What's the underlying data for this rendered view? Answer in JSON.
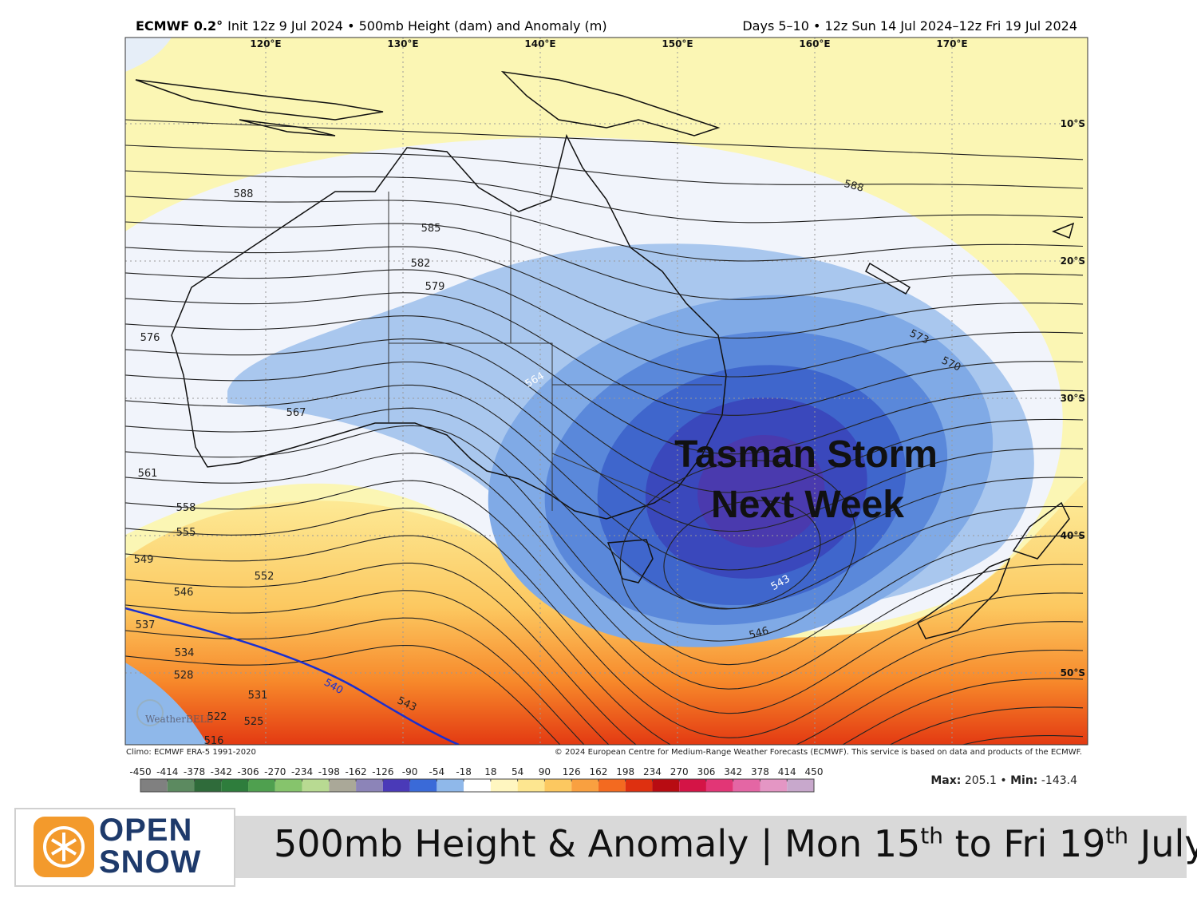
{
  "header": {
    "model": "ECMWF 0.2°",
    "run": "Init 12z 9 Jul 2024 • 500mb Height (dam) and Anomaly (m)",
    "period": "Days 5–10 • 12z Sun 14 Jul 2024–12z Fri 19 Jul 2024"
  },
  "map": {
    "lon_labels": [
      "120°E",
      "130°E",
      "140°E",
      "150°E",
      "160°E",
      "170°E"
    ],
    "lat_labels": [
      "10°S",
      "20°S",
      "30°S",
      "40°S",
      "50°S"
    ],
    "contour_labels": [
      588,
      585,
      582,
      579,
      576,
      567,
      564,
      561,
      558,
      555,
      549,
      552,
      546,
      537,
      534,
      528,
      540,
      531,
      543,
      525,
      522,
      516,
      573,
      570,
      588,
      543,
      546
    ],
    "annotation": [
      "Tasman Storm",
      "Next Week"
    ],
    "watermark": "WeatherBELL",
    "climo": "Climo: ECMWF ERA-5 1991-2020",
    "copyright": "© 2024 European Centre for Medium-Range Weather Forecasts (ECMWF). This service is based on data and products of the ECMWF."
  },
  "colorbar": {
    "ticks": [
      -450,
      -414,
      -378,
      -342,
      -306,
      -270,
      -234,
      -198,
      -162,
      -126,
      -90,
      -54,
      -18,
      18,
      54,
      90,
      126,
      162,
      198,
      234,
      270,
      306,
      342,
      378,
      414,
      450
    ],
    "colors": [
      "#808080",
      "#5c8a60",
      "#2f6b3a",
      "#2e7d3c",
      "#4fa04f",
      "#86c46c",
      "#b8da92",
      "#aaa898",
      "#8c84b8",
      "#4a3ab8",
      "#3a6ad8",
      "#8fb8ea",
      "#ffffff",
      "#fff6c0",
      "#fde690",
      "#fcc860",
      "#f9a040",
      "#f36a20",
      "#de3010",
      "#b80c12",
      "#d41446",
      "#e23676",
      "#e466a4",
      "#e496c4",
      "#c8a8cc"
    ]
  },
  "stats": {
    "max": {
      "label": "Max:",
      "value": 205.1
    },
    "separator": "•",
    "min": {
      "label": "Min:",
      "value": -143.4
    }
  },
  "banner": {
    "logo": [
      "OPEN",
      "SNOW"
    ],
    "caption": [
      "500mb Height & Anomaly | Mon 15",
      "th",
      " to Fri 19",
      "th",
      " July"
    ]
  }
}
